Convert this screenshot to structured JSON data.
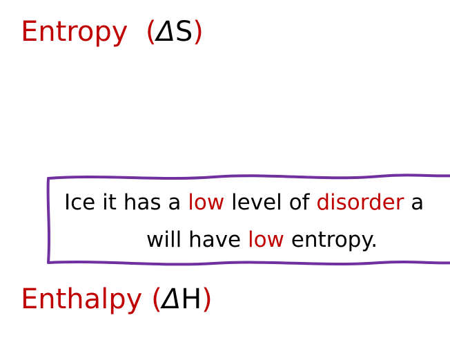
{
  "entropy": {
    "word": "Entropy",
    "open_paren": "(",
    "delta": "Δ",
    "symbol": "S",
    "close_paren": ")"
  },
  "callout": {
    "line1": [
      {
        "text": "Ice it has a ",
        "emphasis": false
      },
      {
        "text": "low",
        "emphasis": true
      },
      {
        "text": " level of ",
        "emphasis": false
      },
      {
        "text": "disorder",
        "emphasis": true
      },
      {
        "text": " a",
        "emphasis": false
      }
    ],
    "line2": [
      {
        "text": "will have ",
        "emphasis": false
      },
      {
        "text": "low",
        "emphasis": true
      },
      {
        "text": " entropy.",
        "emphasis": false
      }
    ]
  },
  "enthalpy": {
    "word": "Enthalpy",
    "open_paren": "(",
    "delta": "Δ",
    "symbol": "H",
    "close_paren": ")"
  },
  "colors": {
    "emphasis": "#c00000",
    "text": "#000000",
    "border": "#7030a0"
  }
}
